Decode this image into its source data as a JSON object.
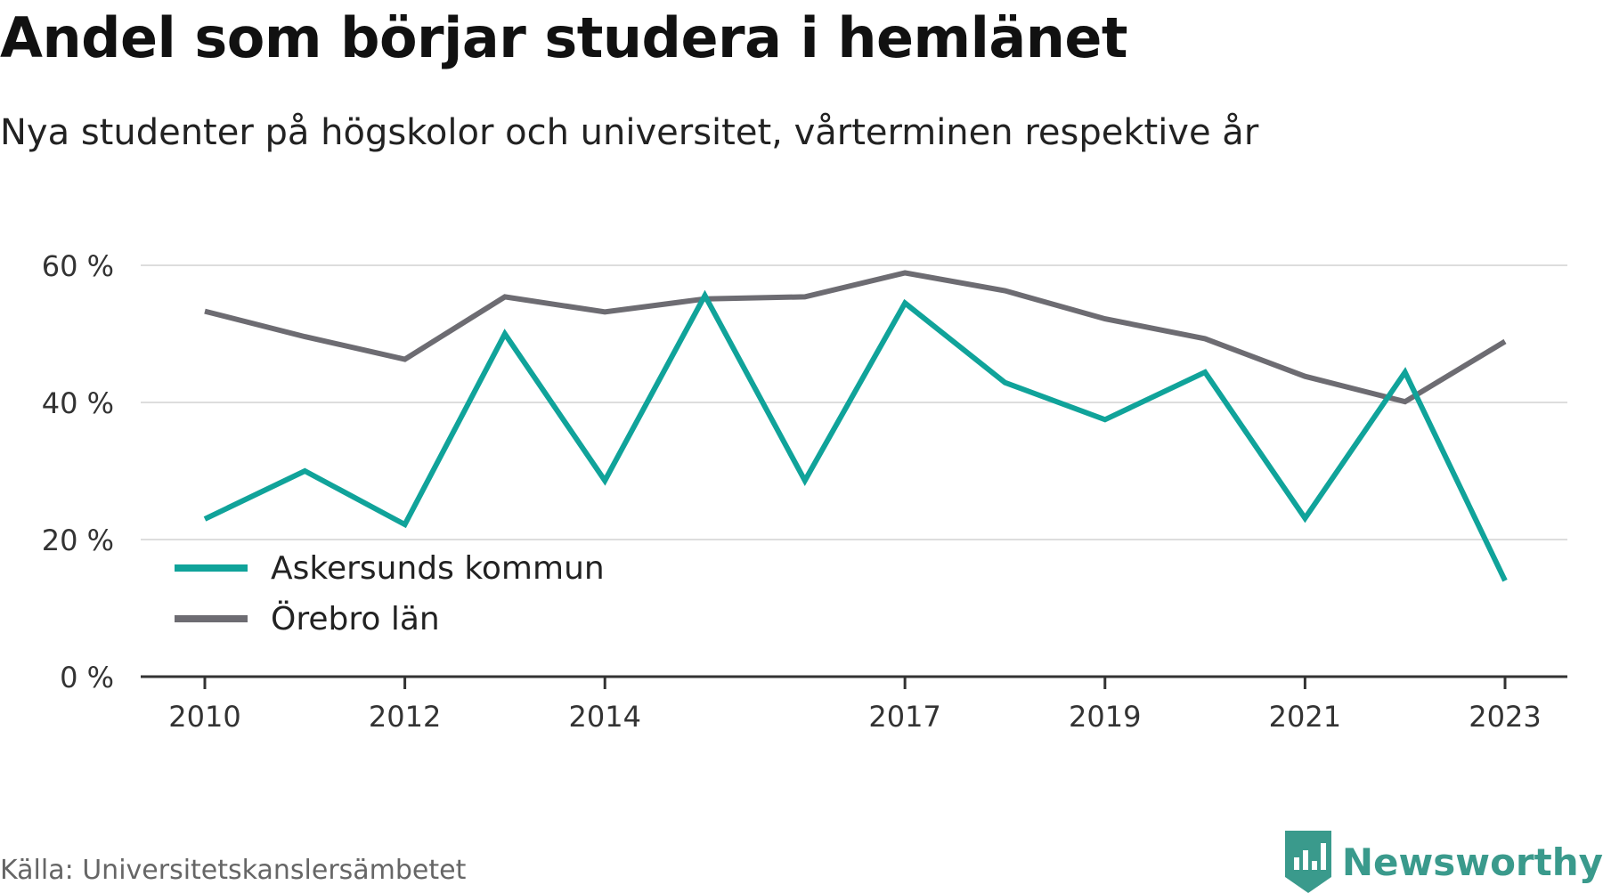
{
  "header": {
    "title": "Andel som börjar studera i hemlänet",
    "subtitle": "Nya studenter på högskolor och universitet, vårterminen respektive år"
  },
  "footer": {
    "source": "Källa: Universitetskanslersämbetet",
    "brand": "Newsworthy",
    "brand_logo_icon": "bar-chart-speech-bubble-icon"
  },
  "colors": {
    "askersund": "#10a39a",
    "orebro": "#6d6c72",
    "grid": "#dddddd",
    "axis": "#333333",
    "brand": "#3a9a8c"
  },
  "chart_data": {
    "type": "line",
    "title": "Andel som börjar studera i hemlänet",
    "subtitle": "Nya studenter på högskolor och universitet, vårterminen respektive år",
    "xlabel": "",
    "ylabel": "",
    "x": [
      2010,
      2011,
      2012,
      2013,
      2014,
      2015,
      2016,
      2017,
      2018,
      2019,
      2020,
      2021,
      2022,
      2023
    ],
    "xticks": [
      "2010",
      "2012",
      "2014",
      "2017",
      "2019",
      "2021",
      "2023"
    ],
    "yticks": [
      "0 %",
      "20 %",
      "40 %",
      "60 %"
    ],
    "ytick_values": [
      0,
      20,
      40,
      60
    ],
    "ylim": [
      0,
      60
    ],
    "grid": true,
    "legend_position": "bottom-left",
    "series": [
      {
        "name": "Askersunds kommun",
        "color": "#10a39a",
        "values": [
          23.0,
          30.0,
          22.2,
          50.0,
          28.6,
          55.6,
          28.6,
          54.5,
          42.9,
          37.5,
          44.4,
          23.1,
          44.4,
          14.0
        ]
      },
      {
        "name": "Örebro län",
        "color": "#6d6c72",
        "values": [
          53.3,
          49.6,
          46.3,
          55.4,
          53.2,
          55.1,
          55.4,
          58.9,
          56.3,
          52.2,
          49.3,
          43.8,
          40.1,
          48.9
        ]
      }
    ]
  }
}
